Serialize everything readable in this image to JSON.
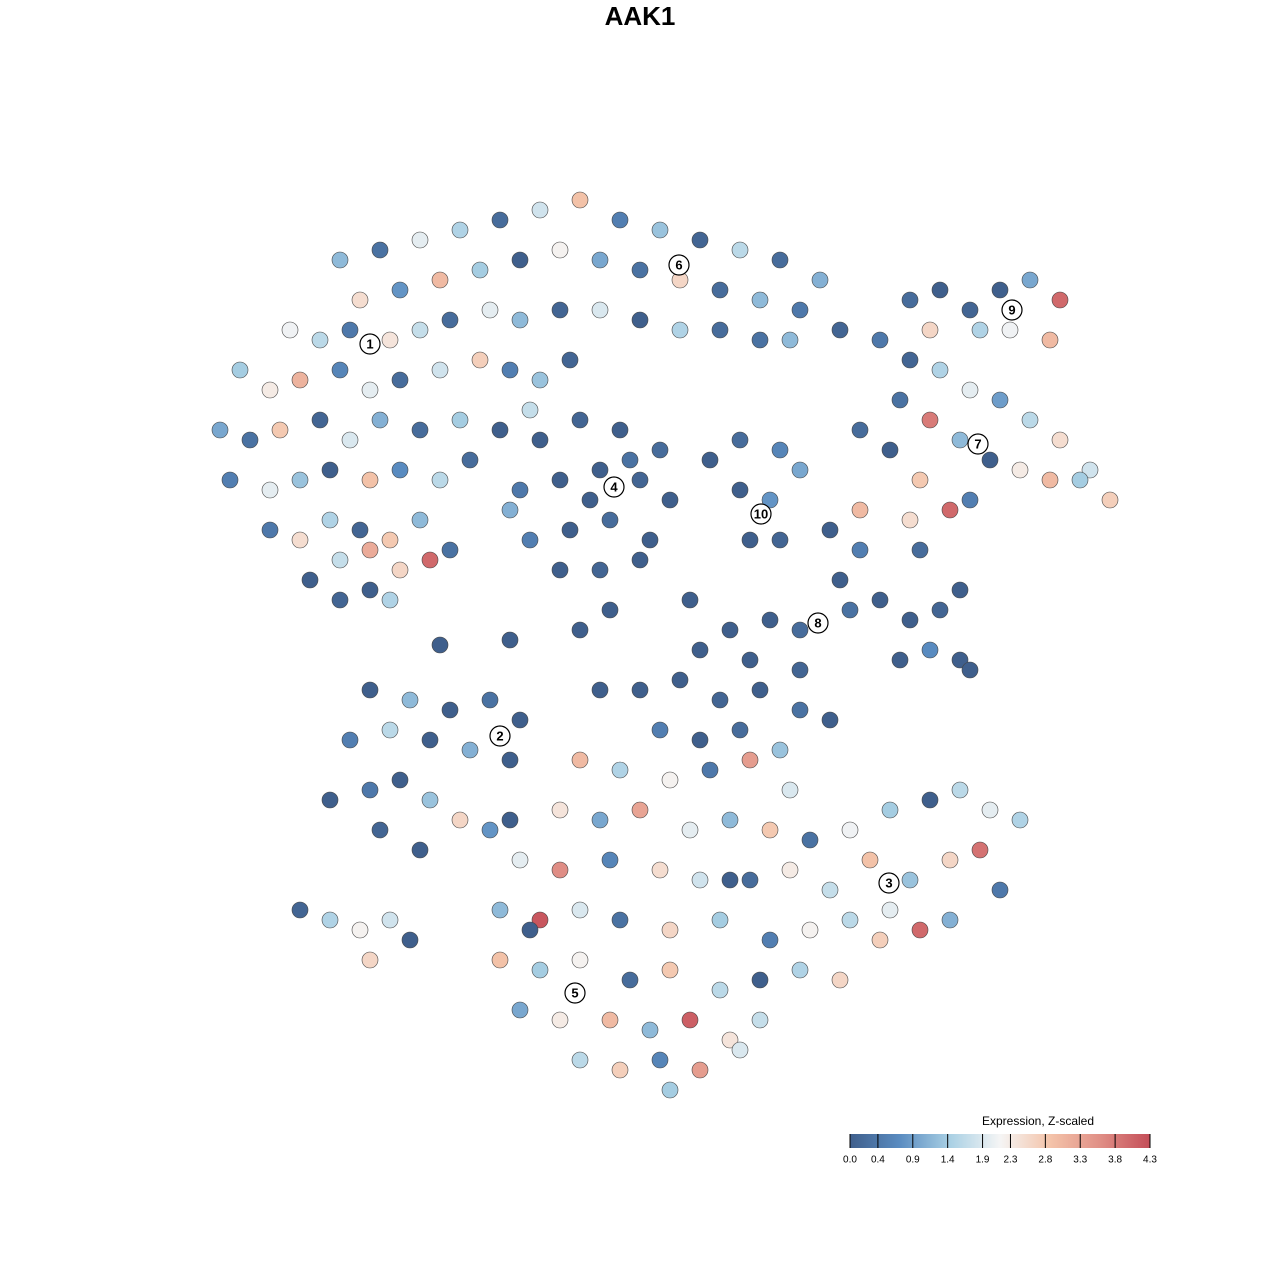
{
  "chart_data": {
    "type": "scatter",
    "title": "AAK1",
    "xlim": [
      -48,
      48
    ],
    "ylim": [
      -48,
      48
    ],
    "x": [
      -30,
      -26,
      -22,
      -18,
      -14,
      -10,
      -6,
      -2,
      2,
      6,
      10,
      14,
      18,
      -28,
      -24,
      -20,
      -16,
      -12,
      -8,
      -4,
      0,
      4,
      8,
      12,
      16,
      20,
      -35,
      -32,
      -29,
      -25,
      -22,
      -19,
      -15,
      -12,
      -8,
      -4,
      0,
      4,
      8,
      12,
      15,
      -40,
      -37,
      -34,
      -30,
      -27,
      -24,
      -20,
      -16,
      -13,
      -10,
      -7,
      -42,
      -39,
      -36,
      -32,
      -29,
      -26,
      -22,
      -18,
      -14,
      -11,
      -41,
      -37,
      -34,
      -31,
      -27,
      -24,
      -20,
      -17,
      -37,
      -34,
      -31,
      -28,
      -25,
      -22,
      -19,
      -33,
      -30,
      -27,
      -24,
      -21,
      -30,
      -27,
      -25,
      -10,
      -6,
      -2,
      2,
      -12,
      -8,
      -4,
      0,
      3,
      -11,
      -7,
      -3,
      1,
      -8,
      -4,
      0,
      -13,
      -5,
      -1,
      10,
      13,
      11,
      14,
      7,
      10,
      14,
      16,
      24,
      27,
      30,
      33,
      36,
      39,
      42,
      45,
      47,
      26,
      29,
      32,
      35,
      38,
      41,
      44,
      22,
      25,
      28,
      31,
      33,
      27,
      30,
      33,
      36,
      39,
      42,
      41,
      37,
      34,
      29,
      19,
      22,
      20,
      21,
      24,
      27,
      30,
      32,
      26,
      29,
      32,
      33,
      9,
      13,
      16,
      6,
      11,
      16,
      22,
      27,
      28,
      -20,
      -13,
      -6,
      -3,
      5,
      -27,
      -23,
      -19,
      -15,
      -12,
      -29,
      -25,
      -21,
      -17,
      -13,
      -31,
      -27,
      -24,
      -21,
      -18,
      -22,
      -26,
      -15,
      -34,
      -31,
      -28,
      -27,
      -25,
      -23,
      -4,
      0,
      4,
      8,
      12,
      16,
      19,
      2,
      6,
      10,
      14,
      -6,
      -2,
      3,
      7,
      11,
      15,
      -8,
      -4,
      0,
      5,
      9,
      13,
      17,
      21,
      25,
      29,
      32,
      35,
      38,
      -12,
      -8,
      -3,
      2,
      6,
      11,
      15,
      19,
      23,
      27,
      31,
      34,
      36,
      -14,
      -10,
      -6,
      -2,
      3,
      8,
      13,
      17,
      21,
      25,
      28,
      31,
      -14,
      -10,
      -6,
      -1,
      3,
      8,
      12,
      16,
      20,
      24,
      -12,
      -8,
      -3,
      1,
      5,
      9,
      12,
      -6,
      -2,
      2,
      6,
      10,
      3,
      -13,
      -11,
      9
    ],
    "y": [
      38,
      39,
      40,
      41,
      42,
      43,
      44,
      42,
      41,
      40,
      39,
      38,
      36,
      34,
      35,
      36,
      37,
      38,
      39,
      38,
      37,
      36,
      35,
      34,
      33,
      31,
      31,
      30,
      31,
      30,
      31,
      32,
      33,
      32,
      33,
      33,
      32,
      31,
      31,
      30,
      30,
      27,
      25,
      26,
      27,
      25,
      26,
      27,
      28,
      27,
      26,
      28,
      21,
      20,
      21,
      22,
      20,
      22,
      21,
      22,
      21,
      23,
      16,
      15,
      16,
      17,
      16,
      17,
      16,
      18,
      11,
      10,
      12,
      11,
      10,
      12,
      9,
      6,
      8,
      9,
      7,
      8,
      4,
      5,
      4,
      20,
      22,
      21,
      19,
      15,
      16,
      17,
      16,
      14,
      10,
      11,
      12,
      10,
      7,
      7,
      8,
      13,
      14,
      18,
      15,
      14,
      10,
      10,
      18,
      20,
      19,
      17,
      30,
      28,
      27,
      25,
      24,
      22,
      20,
      17,
      14,
      24,
      22,
      20,
      18,
      17,
      16,
      16,
      21,
      19,
      16,
      13,
      14,
      34,
      35,
      33,
      35,
      36,
      34,
      30,
      31,
      31,
      31,
      11,
      9,
      6,
      3,
      4,
      2,
      3,
      5,
      -2,
      -1,
      -2,
      -3,
      1,
      2,
      1,
      -1,
      -2,
      -3,
      13,
      12,
      9,
      -0.5,
      0,
      1,
      3,
      4,
      -5,
      -6,
      -7,
      -6,
      -8,
      -10,
      -9,
      -10,
      -11,
      -12,
      -16,
      -15,
      -14,
      -16,
      -18,
      -21,
      -19,
      -19,
      -27,
      -28,
      -29,
      -32,
      -28,
      -30,
      -5,
      -5,
      -4,
      -6,
      -5,
      -7,
      -8,
      -9,
      -10,
      -9,
      -11,
      -12,
      -13,
      -14,
      -13,
      -12,
      -15,
      -17,
      -18,
      -17,
      -19,
      -18,
      -19,
      -20,
      -19,
      -17,
      -16,
      -15,
      -17,
      -18,
      -22,
      -23,
      -22,
      -23,
      -24,
      -24,
      -23,
      -25,
      -22,
      -24,
      -22,
      -21,
      -25,
      -27,
      -28,
      -27,
      -28,
      -29,
      -28,
      -30,
      -29,
      -28,
      -27,
      -29,
      -28,
      -32,
      -33,
      -32,
      -34,
      -33,
      -35,
      -34,
      -33,
      -34,
      -30,
      -37,
      -38,
      -38,
      -39,
      -38,
      -40,
      -38,
      -42,
      -43,
      -42,
      -43,
      -41,
      -45,
      -18,
      -29,
      -24
    ],
    "values": [
      1.2,
      0.3,
      2.0,
      1.5,
      0.2,
      1.8,
      2.9,
      0.5,
      1.3,
      0.1,
      1.6,
      0.2,
      1.1,
      2.5,
      0.8,
      3.0,
      1.4,
      0.0,
      2.2,
      1.0,
      0.3,
      2.6,
      0.2,
      1.2,
      0.4,
      0.1,
      2.1,
      1.6,
      0.4,
      2.4,
      1.7,
      0.2,
      2.0,
      1.2,
      0.1,
      1.9,
      0.0,
      1.5,
      0.2,
      0.3,
      1.2,
      1.4,
      2.3,
      3.1,
      0.6,
      2.0,
      0.2,
      1.8,
      2.7,
      0.5,
      1.3,
      0.1,
      1.0,
      0.3,
      2.8,
      0.1,
      1.9,
      1.1,
      0.2,
      1.4,
      0.0,
      1.7,
      0.5,
      2.0,
      1.3,
      0.0,
      2.9,
      0.7,
      1.6,
      0.2,
      0.4,
      2.5,
      1.5,
      0.1,
      2.8,
      1.2,
      0.3,
      0.0,
      1.7,
      3.2,
      2.6,
      4.0,
      0.1,
      0.0,
      1.5,
      0.0,
      0.1,
      0.0,
      0.2,
      0.4,
      0.0,
      0.0,
      0.1,
      0.0,
      0.5,
      0.0,
      0.2,
      0.0,
      0.0,
      0.1,
      0.0,
      1.1,
      0.0,
      0.3,
      0.0,
      0.8,
      0.0,
      0.1,
      0.0,
      0.2,
      0.6,
      1.0,
      0.4,
      0.1,
      1.5,
      2.0,
      0.9,
      1.6,
      2.5,
      1.8,
      2.7,
      0.3,
      3.8,
      1.2,
      0.0,
      2.3,
      3.0,
      1.4,
      0.2,
      0.0,
      2.8,
      4.0,
      0.5,
      0.2,
      0.0,
      0.1,
      0.0,
      1.0,
      4.0,
      3.0,
      2.1,
      1.5,
      2.6,
      0.0,
      0.5,
      0.0,
      0.3,
      0.0,
      0.0,
      0.1,
      0.0,
      0.0,
      0.7,
      0.0,
      0.0,
      0.0,
      0.0,
      0.2,
      0.0,
      0.0,
      0.1,
      3.0,
      2.5,
      0.2,
      0.0,
      0.0,
      0.0,
      0.0,
      0.0,
      0.0,
      1.2,
      0.0,
      0.3,
      0.0,
      0.5,
      1.6,
      0.0,
      1.1,
      0.0,
      0.0,
      0.4,
      0.0,
      1.3,
      2.6,
      0.0,
      0.1,
      0.8,
      0.1,
      1.5,
      2.2,
      2.6,
      1.8,
      0.0,
      0.0,
      0.0,
      0.0,
      0.1,
      0.0,
      0.3,
      0.0,
      0.5,
      0.0,
      0.2,
      1.3,
      3.0,
      1.5,
      2.2,
      0.4,
      3.4,
      1.9,
      2.4,
      1.0,
      3.3,
      2.0,
      1.2,
      2.8,
      0.3,
      2.1,
      1.4,
      0.0,
      1.6,
      2.0,
      1.5,
      2.0,
      3.6,
      0.6,
      2.5,
      1.8,
      0.2,
      2.3,
      1.7,
      2.9,
      1.3,
      2.6,
      3.9,
      0.4,
      1.2,
      4.2,
      1.9,
      0.3,
      2.6,
      1.4,
      0.5,
      2.2,
      1.6,
      2.0,
      4.0,
      1.1,
      2.9,
      1.4,
      2.2,
      0.2,
      2.8,
      1.6,
      0.0,
      1.5,
      2.6,
      2.7,
      1.0,
      2.3,
      3.0,
      1.2,
      4.1,
      2.4,
      1.7,
      1.6,
      2.7,
      0.6,
      3.4,
      1.9,
      1.4,
      0.0,
      0.0,
      0.0
    ],
    "annotations": [
      {
        "text": "1",
        "x": -27,
        "y": 29.6
      },
      {
        "text": "2",
        "x": -14,
        "y": -9.6
      },
      {
        "text": "3",
        "x": 24.9,
        "y": -24.3
      },
      {
        "text": "4",
        "x": -2.6,
        "y": 15.3
      },
      {
        "text": "5",
        "x": -6.5,
        "y": -35.3
      },
      {
        "text": "6",
        "x": 3.9,
        "y": 37.5
      },
      {
        "text": "7",
        "x": 33.8,
        "y": 19.6
      },
      {
        "text": "8",
        "x": 17.8,
        "y": 1.7
      },
      {
        "text": "9",
        "x": 37.2,
        "y": 33
      },
      {
        "text": "10",
        "x": 12.1,
        "y": 12.6
      }
    ],
    "colorbar": {
      "title": "Expression, Z-scaled",
      "ticks": [
        {
          "value": 0,
          "label": "0.0"
        },
        0.4,
        0.9,
        1.4,
        1.9,
        2.3,
        2.8,
        3.3,
        3.8,
        4.3
      ],
      "colors": [
        "#3f5f8c",
        "#5a8cc1",
        "#a9d0e4",
        "#f5f5f5",
        "#f4c4aa",
        "#e08f86",
        "#c44d58"
      ]
    },
    "marker_edge": "#444444"
  }
}
